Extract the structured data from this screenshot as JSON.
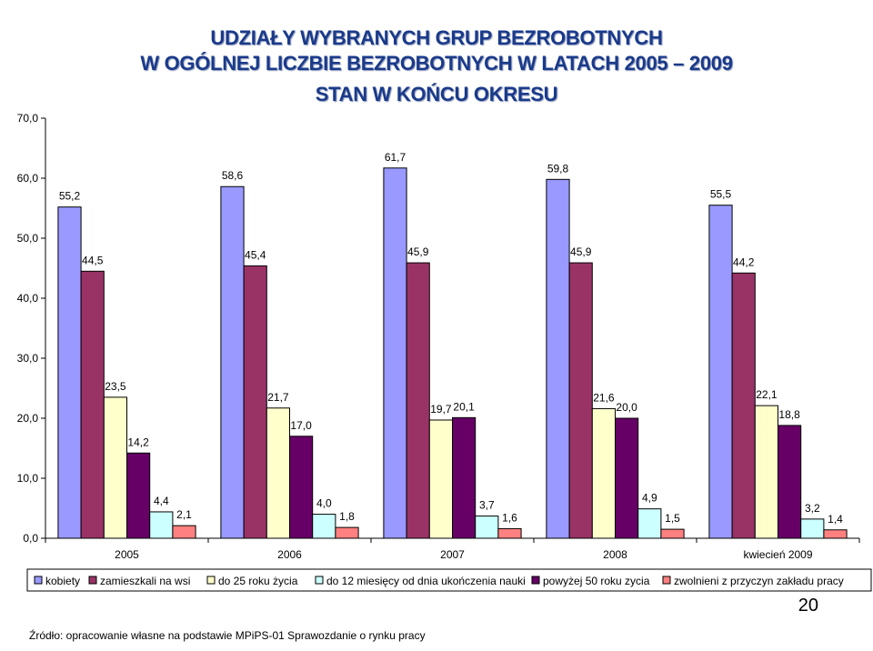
{
  "title_lines": [
    "UDZIAŁY WYBRANYCH GRUP BEZROBOTNYCH",
    "W OGÓLNEJ LICZBIE BEZROBOTNYCH W LATACH 2005 – 2009",
    "STAN W KOŃCU OKRESU"
  ],
  "page_number": "20",
  "source": "Źródło: opracowanie własne na podstawie MPiPS-01 Sprawozdanie o rynku pracy",
  "chart_data": {
    "type": "bar",
    "categories": [
      "2005",
      "2006",
      "2007",
      "2008",
      "kwiecień 2009"
    ],
    "ylim": [
      0,
      70
    ],
    "yticks": [
      "0,0",
      "10,0",
      "20,0",
      "30,0",
      "40,0",
      "50,0",
      "60,0",
      "70,0"
    ],
    "legend_position": "bottom",
    "series": [
      {
        "name": "kobiety",
        "color": "#9999ff",
        "values": [
          55.2,
          58.6,
          61.7,
          59.8,
          55.5
        ],
        "labels": [
          "55,2",
          "58,6",
          "61,7",
          "59,8",
          "55,5"
        ]
      },
      {
        "name": "zamieszkali na wsi",
        "color": "#993366",
        "values": [
          44.5,
          45.4,
          45.9,
          45.9,
          44.2
        ],
        "labels": [
          "44,5",
          "45,4",
          "45,9",
          "45,9",
          "44,2"
        ]
      },
      {
        "name": "do 25 roku życia",
        "color": "#ffffcc",
        "values": [
          23.5,
          21.7,
          19.7,
          21.6,
          22.1
        ],
        "labels": [
          "23,5",
          "21,7",
          "19,7",
          "21,6",
          "22,1"
        ]
      },
      {
        "name": "powyżej 50 roku zycia",
        "color": "#660066",
        "values": [
          14.2,
          17.0,
          20.1,
          20.0,
          18.8
        ],
        "labels": [
          "14,2",
          "17,0",
          "20,1",
          "20,0",
          "18,8"
        ]
      },
      {
        "name": "do 12 miesięcy od dnia ukończenia nauki",
        "color": "#ccffff",
        "values": [
          4.4,
          4.0,
          3.7,
          4.9,
          3.2
        ],
        "labels": [
          "4,4",
          "4,0",
          "3,7",
          "4,9",
          "3,2"
        ]
      },
      {
        "name": "zwolnieni z przyczyn zakładu pracy",
        "color": "#ff8080",
        "values": [
          2.1,
          1.8,
          1.6,
          1.5,
          1.4
        ],
        "labels": [
          "2,1",
          "1,8",
          "1,6",
          "1,5",
          "1,4"
        ]
      }
    ],
    "legend_order": [
      0,
      1,
      2,
      4,
      3,
      5
    ]
  }
}
